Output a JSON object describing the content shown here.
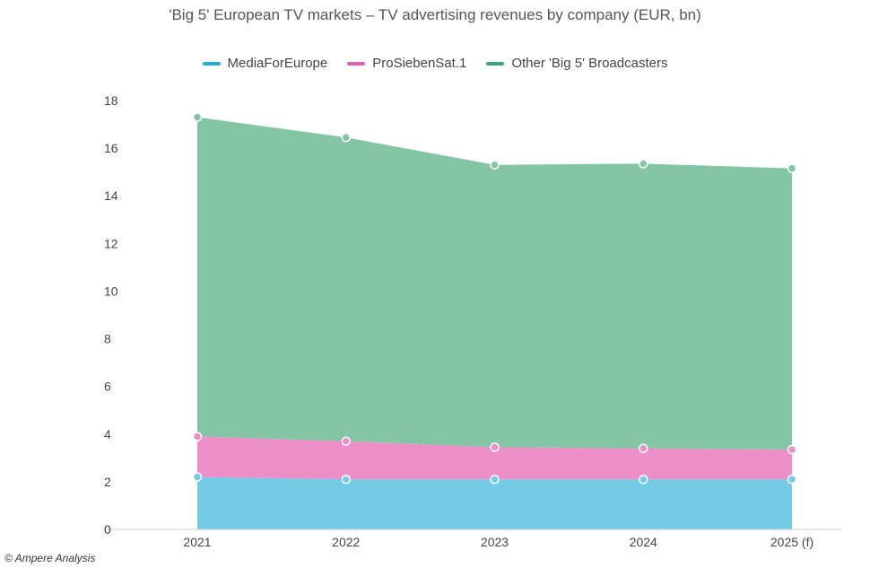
{
  "chart_data": {
    "type": "area",
    "stacked": true,
    "title": "'Big 5' European TV markets – TV advertising revenues by company (EUR, bn)",
    "categories": [
      "2021",
      "2022",
      "2023",
      "2024",
      "2025 (f)"
    ],
    "ylim": [
      0,
      18
    ],
    "yticks": [
      "0",
      "2",
      "4",
      "6",
      "8",
      "10",
      "12",
      "14",
      "16",
      "18"
    ],
    "grid": false,
    "legend_position": "top",
    "series": [
      {
        "name": "MediaForEurope",
        "color": "#29a9d8",
        "fill": "#74cbe6",
        "values": [
          2.2,
          2.1,
          2.1,
          2.1,
          2.1
        ]
      },
      {
        "name": "ProSiebenSat.1",
        "color": "#e05fb5",
        "fill": "#ec8fc9",
        "values": [
          1.7,
          1.6,
          1.35,
          1.3,
          1.25
        ]
      },
      {
        "name": "Other 'Big 5' Broadcasters",
        "color": "#3aa67a",
        "fill": "#84c5a6",
        "values": [
          13.4,
          12.75,
          11.85,
          11.95,
          11.8
        ]
      }
    ]
  },
  "source": "© Ampere Analysis"
}
